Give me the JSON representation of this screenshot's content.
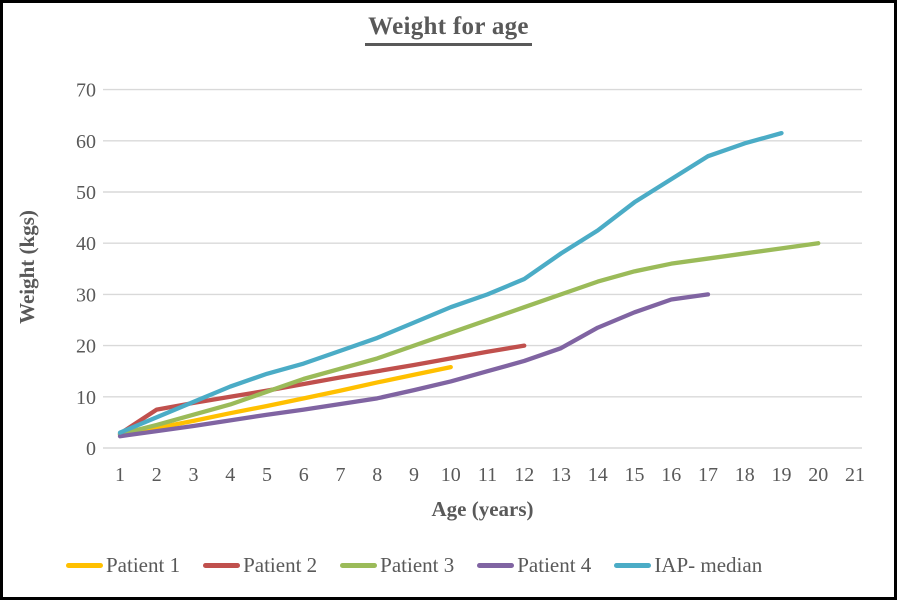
{
  "chart_data": {
    "type": "line",
    "title": "Weight for age",
    "xlabel": "Age (years)",
    "ylabel": "Weight (kgs)",
    "x_ticks": [
      1,
      2,
      3,
      4,
      5,
      6,
      7,
      8,
      9,
      10,
      11,
      12,
      13,
      14,
      15,
      16,
      17,
      18,
      19,
      20,
      21
    ],
    "y_ticks": [
      0,
      10,
      20,
      30,
      40,
      50,
      60,
      70
    ],
    "xlim": [
      1,
      21
    ],
    "ylim": [
      0,
      70
    ],
    "grid": "horizontal-only",
    "gridline_color": "#d9d9d9",
    "text_color": "#595959",
    "legend_position": "bottom",
    "series": [
      {
        "name": "Patient 1",
        "color": "#FFC000",
        "x": [
          1,
          2,
          3,
          4,
          5,
          6,
          7,
          8,
          9,
          10
        ],
        "y": [
          2.6,
          3.9,
          5.3,
          6.8,
          8.2,
          9.7,
          11.2,
          12.8,
          14.3,
          15.8
        ]
      },
      {
        "name": "Patient 2",
        "color": "#C0504D",
        "x": [
          1,
          2,
          3,
          4,
          5,
          6,
          7,
          8,
          9,
          10,
          11,
          12
        ],
        "y": [
          2.8,
          7.5,
          8.8,
          10,
          11.2,
          12.5,
          13.8,
          15,
          16.2,
          17.5,
          18.8,
          20
        ]
      },
      {
        "name": "Patient 3",
        "color": "#9BBB59",
        "x": [
          1,
          2,
          3,
          4,
          5,
          6,
          7,
          8,
          9,
          10,
          11,
          12,
          13,
          14,
          15,
          16,
          17,
          18,
          19,
          20
        ],
        "y": [
          2.7,
          4.5,
          6.5,
          8.5,
          11,
          13.5,
          15.5,
          17.5,
          20,
          22.5,
          25,
          27.5,
          30,
          32.5,
          34.5,
          36,
          37,
          38,
          39,
          40
        ]
      },
      {
        "name": "Patient 4",
        "color": "#8064A2",
        "x": [
          1,
          2,
          3,
          4,
          5,
          6,
          7,
          8,
          9,
          10,
          11,
          12,
          13,
          14,
          15,
          16,
          17
        ],
        "y": [
          2.3,
          3.3,
          4.3,
          5.4,
          6.5,
          7.5,
          8.6,
          9.7,
          11.3,
          13,
          15,
          17,
          19.5,
          23.5,
          26.5,
          29,
          30
        ]
      },
      {
        "name": "IAP- median",
        "color": "#4BACC6",
        "x": [
          1,
          2,
          3,
          4,
          5,
          6,
          7,
          8,
          9,
          10,
          11,
          12,
          13,
          14,
          15,
          16,
          17,
          18,
          19
        ],
        "y": [
          3,
          6,
          9,
          12,
          14.5,
          16.5,
          19,
          21.5,
          24.5,
          27.5,
          30,
          33,
          38,
          42.5,
          48,
          52.5,
          57,
          59.5,
          61.5
        ]
      }
    ]
  }
}
